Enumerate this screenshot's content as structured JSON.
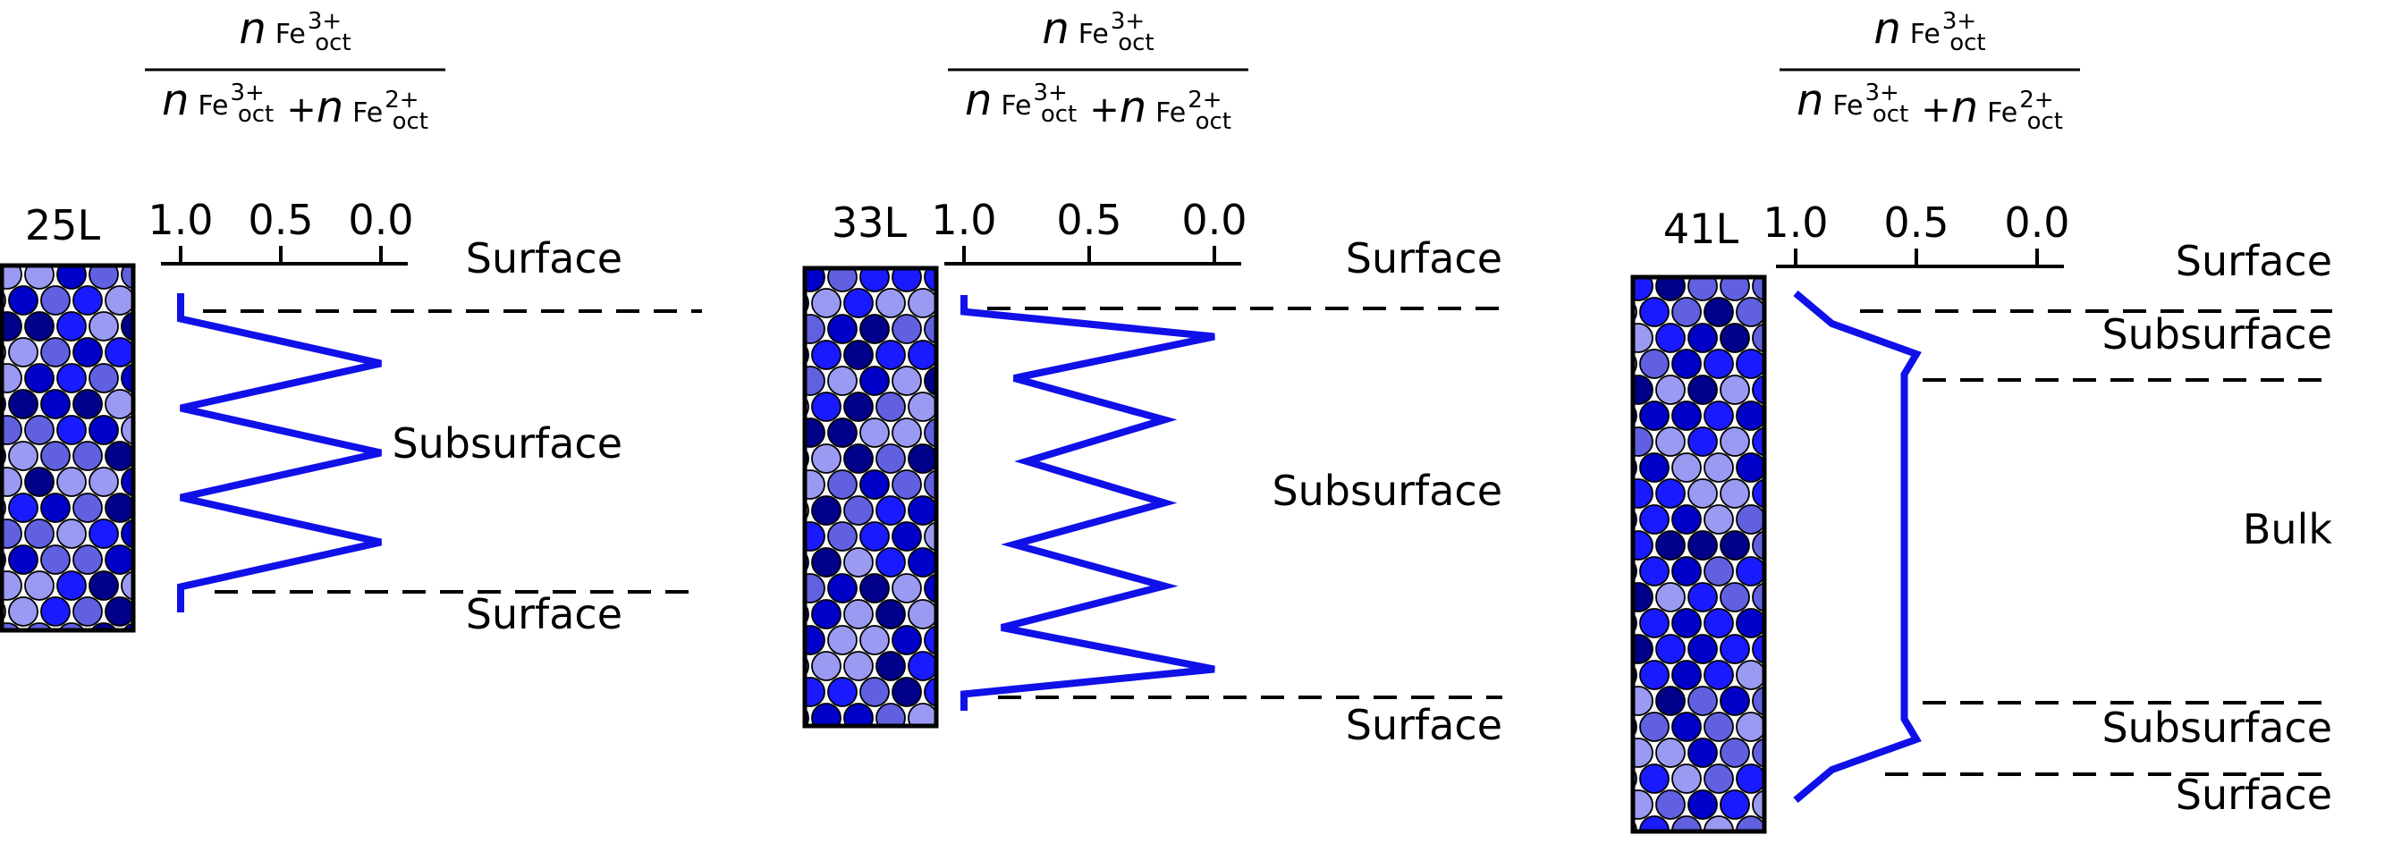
{
  "figure": {
    "quantity_expression": {
      "numerator": {
        "symbol": "n",
        "species": "Fe",
        "superscript": "3+",
        "subscript": "oct"
      },
      "denominator": [
        {
          "symbol": "n",
          "species": "Fe",
          "superscript": "3+",
          "subscript": "oct"
        },
        {
          "symbol": "n",
          "species": "Fe",
          "superscript": "2+",
          "subscript": "oct"
        }
      ],
      "operator": "+"
    },
    "axis_ticks": [
      "1.0",
      "0.5",
      "0.0"
    ],
    "colors": {
      "profile": "#1010e8",
      "atoms": [
        "#1a1aff",
        "#0000c8",
        "#9a9af2",
        "#6060e0",
        "#00008a"
      ]
    }
  },
  "chart_data": [
    {
      "type": "line",
      "title": "25L",
      "xlim": [
        1.0,
        0.0
      ],
      "x_ticks": [
        1.0,
        0.5,
        0.0
      ],
      "orientation": "vertical-profile",
      "points": [
        [
          1.0,
          0
        ],
        [
          1.0,
          0.08
        ],
        [
          0.0,
          0.22
        ],
        [
          1.0,
          0.36
        ],
        [
          0.0,
          0.5
        ],
        [
          1.0,
          0.64
        ],
        [
          0.0,
          0.78
        ],
        [
          1.0,
          0.92
        ],
        [
          1.0,
          1.0
        ]
      ],
      "regions": [
        "Surface",
        "Subsurface",
        "Surface"
      ]
    },
    {
      "type": "line",
      "title": "33L",
      "xlim": [
        1.0,
        0.0
      ],
      "x_ticks": [
        1.0,
        0.5,
        0.0
      ],
      "orientation": "vertical-profile",
      "points": [
        [
          1.0,
          0
        ],
        [
          1.0,
          0.04
        ],
        [
          0.0,
          0.1
        ],
        [
          0.8,
          0.2
        ],
        [
          0.2,
          0.3
        ],
        [
          0.75,
          0.4
        ],
        [
          0.2,
          0.5
        ],
        [
          0.8,
          0.6
        ],
        [
          0.2,
          0.7
        ],
        [
          0.85,
          0.8
        ],
        [
          0.0,
          0.9
        ],
        [
          1.0,
          0.96
        ],
        [
          1.0,
          1.0
        ]
      ],
      "regions": [
        "Surface",
        "Subsurface",
        "Surface"
      ]
    },
    {
      "type": "line",
      "title": "41L",
      "xlim": [
        1.0,
        0.0
      ],
      "x_ticks": [
        1.0,
        0.5,
        0.0
      ],
      "orientation": "vertical-profile",
      "points": [
        [
          1.0,
          0
        ],
        [
          0.85,
          0.06
        ],
        [
          0.5,
          0.12
        ],
        [
          0.55,
          0.16
        ],
        [
          0.55,
          0.84
        ],
        [
          0.5,
          0.88
        ],
        [
          0.85,
          0.94
        ],
        [
          1.0,
          1.0
        ]
      ],
      "regions": [
        "Surface",
        "Subsurface",
        "Bulk",
        "Subsurface",
        "Surface"
      ]
    }
  ]
}
